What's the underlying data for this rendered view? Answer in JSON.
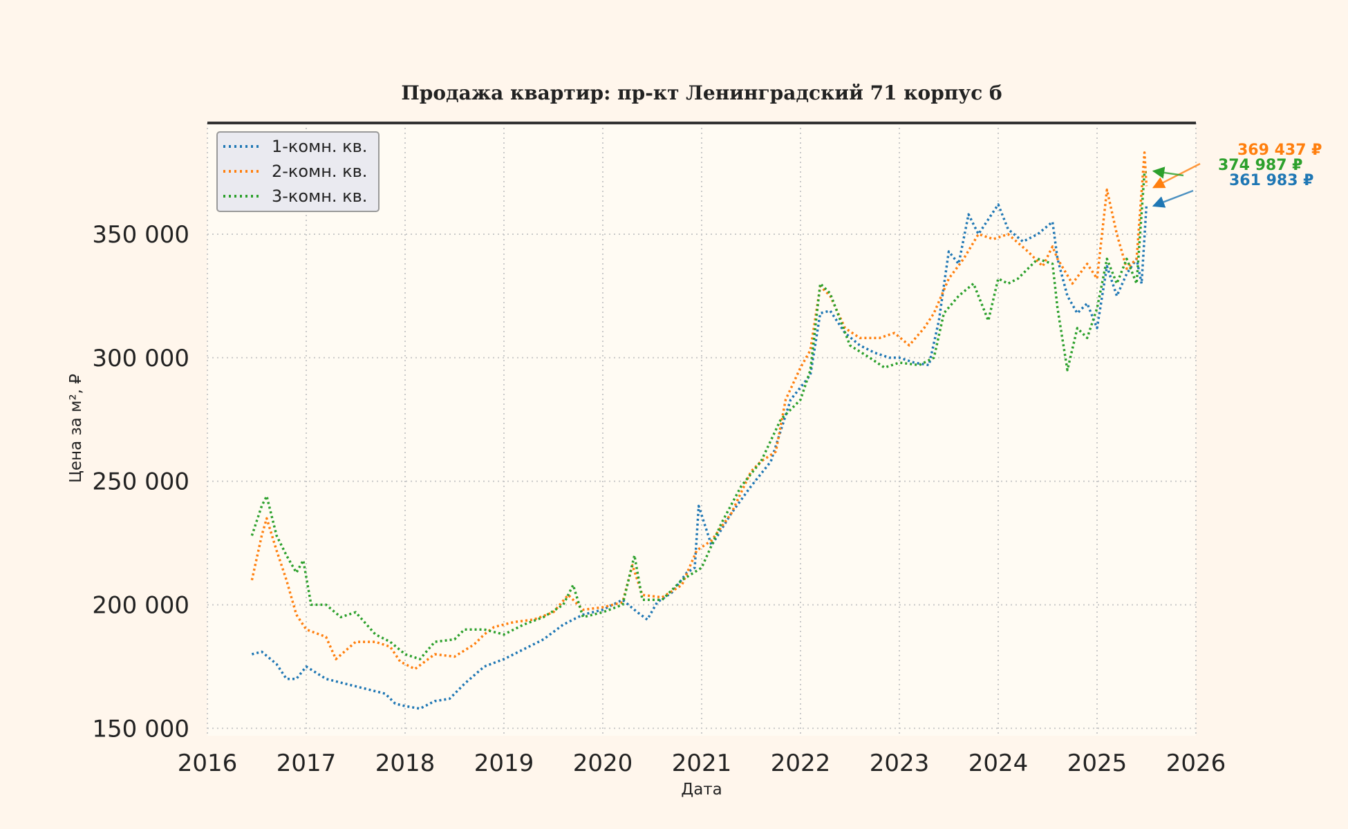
{
  "chart_data": {
    "type": "line",
    "title": "Продажа квартир: пр-кт Ленинградский 71 корпус б",
    "xlabel": "Дата",
    "ylabel": "Цена за м², ₽",
    "xlim": [
      2016,
      2026
    ],
    "ylim": [
      147000,
      395000
    ],
    "x_ticks": [
      "2016",
      "2017",
      "2018",
      "2019",
      "2020",
      "2021",
      "2022",
      "2023",
      "2024",
      "2025",
      "2026"
    ],
    "y_ticks": [
      "150 000",
      "200 000",
      "250 000",
      "300 000",
      "350 000"
    ],
    "grid": true,
    "legend_position": "top-left",
    "series": [
      {
        "name": "1-комн. кв.",
        "color": "#1f77b4",
        "x": [
          2016.45,
          2016.55,
          2016.7,
          2016.8,
          2016.9,
          2017.0,
          2017.2,
          2017.4,
          2017.6,
          2017.8,
          2017.9,
          2018.0,
          2018.15,
          2018.3,
          2018.45,
          2018.6,
          2018.8,
          2019.0,
          2019.2,
          2019.4,
          2019.6,
          2019.8,
          2020.0,
          2020.2,
          2020.35,
          2020.45,
          2020.55,
          2020.7,
          2020.85,
          2020.93,
          2020.97,
          2021.1,
          2021.3,
          2021.5,
          2021.7,
          2021.9,
          2022.1,
          2022.2,
          2022.3,
          2022.45,
          2022.6,
          2022.75,
          2022.9,
          2023.0,
          2023.15,
          2023.3,
          2023.4,
          2023.5,
          2023.6,
          2023.7,
          2023.8,
          2023.9,
          2024.0,
          2024.1,
          2024.25,
          2024.4,
          2024.55,
          2024.6,
          2024.7,
          2024.8,
          2024.9,
          2025.0,
          2025.1,
          2025.2,
          2025.3,
          2025.4,
          2025.45,
          2025.5
        ],
        "values": [
          180000,
          181000,
          176000,
          170000,
          170000,
          175000,
          170000,
          168000,
          166000,
          164000,
          160000,
          159000,
          158000,
          161000,
          162000,
          168000,
          175000,
          178000,
          182000,
          186000,
          192000,
          196000,
          198000,
          202000,
          197000,
          194000,
          201000,
          205000,
          213000,
          215000,
          240000,
          224000,
          237000,
          248000,
          258000,
          283000,
          293000,
          318000,
          319000,
          310000,
          305000,
          302000,
          300000,
          300000,
          298000,
          297000,
          315000,
          343000,
          338000,
          358000,
          350000,
          356000,
          362000,
          352000,
          347000,
          350000,
          355000,
          340000,
          325000,
          318000,
          322000,
          312000,
          337000,
          325000,
          334000,
          340000,
          330000,
          361983
        ]
      },
      {
        "name": "2-комн. кв.",
        "color": "#ff7f0e",
        "x": [
          2016.45,
          2016.55,
          2016.6,
          2016.7,
          2016.8,
          2016.9,
          2017.0,
          2017.2,
          2017.3,
          2017.5,
          2017.7,
          2017.85,
          2017.95,
          2018.1,
          2018.3,
          2018.5,
          2018.7,
          2018.8,
          2018.9,
          2019.1,
          2019.3,
          2019.5,
          2019.65,
          2019.8,
          2020.0,
          2020.2,
          2020.3,
          2020.4,
          2020.6,
          2020.8,
          2020.95,
          2021.1,
          2021.3,
          2021.5,
          2021.6,
          2021.75,
          2021.85,
          2022.0,
          2022.1,
          2022.2,
          2022.3,
          2022.45,
          2022.6,
          2022.8,
          2022.95,
          2023.1,
          2023.25,
          2023.35,
          2023.5,
          2023.65,
          2023.8,
          2023.95,
          2024.1,
          2024.3,
          2024.45,
          2024.55,
          2024.6,
          2024.75,
          2024.9,
          2025.0,
          2025.1,
          2025.2,
          2025.3,
          2025.4,
          2025.48,
          2025.5
        ],
        "values": [
          210000,
          228000,
          235000,
          222000,
          210000,
          196000,
          190000,
          187000,
          178000,
          185000,
          185000,
          183000,
          177000,
          174000,
          180000,
          179000,
          184000,
          188000,
          191000,
          193000,
          194000,
          197000,
          204000,
          198000,
          199000,
          201000,
          216000,
          204000,
          203000,
          208000,
          222000,
          226000,
          237000,
          254000,
          258000,
          262000,
          283000,
          296000,
          303000,
          329000,
          325000,
          312000,
          308000,
          308000,
          310000,
          305000,
          312000,
          318000,
          332000,
          340000,
          350000,
          348000,
          350000,
          343000,
          337000,
          345000,
          340000,
          330000,
          338000,
          332000,
          368000,
          350000,
          336000,
          340000,
          383000,
          369437
        ]
      },
      {
        "name": "3-комн. кв.",
        "color": "#2ca02c",
        "x": [
          2016.45,
          2016.55,
          2016.6,
          2016.7,
          2016.8,
          2016.9,
          2016.97,
          2017.05,
          2017.2,
          2017.35,
          2017.5,
          2017.7,
          2017.85,
          2018.0,
          2018.15,
          2018.3,
          2018.5,
          2018.6,
          2018.8,
          2019.0,
          2019.2,
          2019.4,
          2019.6,
          2019.7,
          2019.8,
          2020.0,
          2020.2,
          2020.32,
          2020.4,
          2020.6,
          2020.8,
          2021.0,
          2021.2,
          2021.4,
          2021.6,
          2021.8,
          2022.0,
          2022.1,
          2022.2,
          2022.3,
          2022.5,
          2022.7,
          2022.85,
          2023.0,
          2023.2,
          2023.35,
          2023.45,
          2023.6,
          2023.75,
          2023.9,
          2024.0,
          2024.1,
          2024.2,
          2024.4,
          2024.55,
          2024.6,
          2024.7,
          2024.8,
          2024.9,
          2025.0,
          2025.1,
          2025.2,
          2025.3,
          2025.4,
          2025.48,
          2025.5
        ],
        "values": [
          228000,
          240000,
          244000,
          228000,
          220000,
          213000,
          218000,
          200000,
          200000,
          195000,
          197000,
          188000,
          185000,
          180000,
          178000,
          185000,
          186000,
          190000,
          190000,
          188000,
          192000,
          195000,
          200000,
          208000,
          195000,
          197000,
          200000,
          220000,
          202000,
          202000,
          210000,
          215000,
          233000,
          248000,
          258000,
          275000,
          283000,
          295000,
          330000,
          326000,
          305000,
          300000,
          296000,
          298000,
          297000,
          300000,
          318000,
          325000,
          330000,
          315000,
          332000,
          330000,
          332000,
          340000,
          338000,
          320000,
          295000,
          312000,
          308000,
          320000,
          340000,
          330000,
          340000,
          330000,
          375000,
          374987
        ]
      }
    ],
    "annotations": [
      {
        "text": "369 437 ₽",
        "series": "2-комн. кв.",
        "color": "#ff7f0e"
      },
      {
        "text": "374 987 ₽",
        "series": "3-комн. кв.",
        "color": "#2ca02c"
      },
      {
        "text": "361 983 ₽",
        "series": "1-комн. кв.",
        "color": "#1f77b4"
      }
    ]
  }
}
